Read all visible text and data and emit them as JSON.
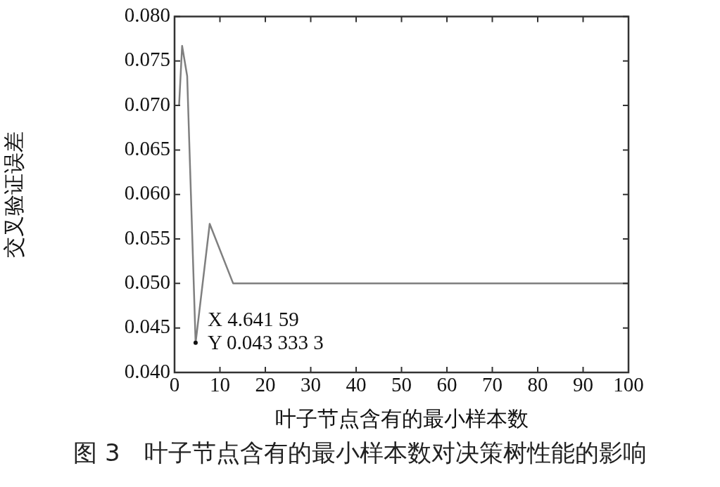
{
  "chart_data": {
    "type": "line",
    "title": "图 3　叶子节点含有的最小样本数对决策树性能的影响",
    "xlabel": "叶子节点含有的最小样本数",
    "ylabel": "交叉验证误差",
    "x": [
      1,
      1.668,
      2.783,
      4.64159,
      7.743,
      12.915,
      21.544,
      35.938,
      59.948,
      100
    ],
    "series": [
      {
        "color": "#7f7f7f",
        "values": [
          0.07,
          0.0767,
          0.0733,
          0.0433333,
          0.0567,
          0.05,
          0.05,
          0.05,
          0.05,
          0.05
        ]
      }
    ],
    "xlim": [
      0,
      100
    ],
    "xticks": [
      0,
      10,
      20,
      30,
      40,
      50,
      60,
      70,
      80,
      90,
      100
    ],
    "ylim": [
      0.04,
      0.08
    ],
    "yticks": [
      {
        "value": 0.04,
        "label": "0.040"
      },
      {
        "value": 0.045,
        "label": "0.045"
      },
      {
        "value": 0.05,
        "label": "0.050"
      },
      {
        "value": 0.055,
        "label": "0.055"
      },
      {
        "value": 0.06,
        "label": "0.060"
      },
      {
        "value": 0.065,
        "label": "0.065"
      },
      {
        "value": 0.07,
        "label": "0.070"
      },
      {
        "value": 0.075,
        "label": "0.075"
      },
      {
        "value": 0.08,
        "label": "0.080"
      }
    ],
    "grid": false,
    "legend": false,
    "marker": "none",
    "line_style": "solid",
    "annotations": [
      {
        "text": "X 4.641 59\nY 0.043 333 3",
        "x": 4.64159,
        "y": 0.0433333
      }
    ]
  }
}
